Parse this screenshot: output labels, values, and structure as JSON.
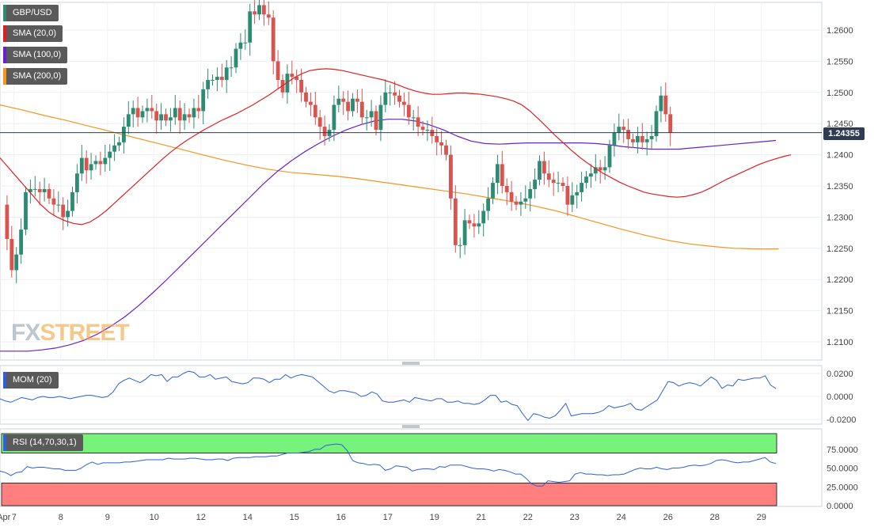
{
  "legend": {
    "pair": "GBP/USD",
    "sma20": "SMA (20,0)",
    "sma100": "SMA (100,0)",
    "sma200": "SMA (200,0)",
    "mom": "MOM (20)",
    "rsi": "RSI (14,70,30,1)"
  },
  "watermark": {
    "part1": "FX",
    "part2": "STREET"
  },
  "colors": {
    "up": "#2e8b73",
    "down": "#d9534f",
    "sma20": "#e02020",
    "sma100": "#6a1fd0",
    "sma200": "#f5951e",
    "mom": "#2f5fd8",
    "rsi": "#2f5fd8",
    "overbought": "#77f27a",
    "oversold": "#ff7f7f",
    "badge": "#2f3b52"
  },
  "chart_data": {
    "type": "candlestick",
    "current_price": "1.24355",
    "price_axis": {
      "ticks": [
        "1.2600",
        "1.2550",
        "1.2500",
        "1.2450",
        "1.2400",
        "1.2350",
        "1.2300",
        "1.2250",
        "1.2200",
        "1.2150",
        "1.2100"
      ]
    },
    "mom_axis": {
      "ticks": [
        "0.0200",
        "0.0000",
        "-0.0200"
      ]
    },
    "rsi_axis": {
      "ticks": [
        "75.0000",
        "50.0000",
        "25.0000",
        "0.0000"
      ],
      "overbought": 70,
      "oversold": 30
    },
    "x_labels": [
      {
        "label": "Apr",
        "idx": 0.3
      },
      {
        "label": "7",
        "idx": 2.5
      },
      {
        "label": "8",
        "idx": 12.5
      },
      {
        "label": "9",
        "idx": 22.5
      },
      {
        "label": "10",
        "idx": 32.5
      },
      {
        "label": "12",
        "idx": 42.5
      },
      {
        "label": "14",
        "idx": 52.5
      },
      {
        "label": "15",
        "idx": 62.5
      },
      {
        "label": "16",
        "idx": 72.5
      },
      {
        "label": "17",
        "idx": 82.5
      },
      {
        "label": "19",
        "idx": 92.5
      },
      {
        "label": "21",
        "idx": 102.5
      },
      {
        "label": "22",
        "idx": 112.5
      },
      {
        "label": "23",
        "idx": 122.5
      },
      {
        "label": "24",
        "idx": 132.5
      },
      {
        "label": "26",
        "idx": 142.5
      },
      {
        "label": "28",
        "idx": 152.5
      },
      {
        "label": "29",
        "idx": 162.5
      }
    ],
    "closes": [
      1.232,
      1.2265,
      1.2215,
      1.224,
      1.228,
      1.234,
      1.2345,
      1.2345,
      1.234,
      1.2345,
      1.233,
      1.232,
      1.232,
      1.23,
      1.231,
      1.234,
      1.237,
      1.2395,
      1.2375,
      1.2385,
      1.239,
      1.2385,
      1.2395,
      1.2405,
      1.2415,
      1.242,
      1.2445,
      1.2465,
      1.2475,
      1.246,
      1.247,
      1.2475,
      1.247,
      1.2455,
      1.2465,
      1.2455,
      1.246,
      1.2475,
      1.2455,
      1.2465,
      1.246,
      1.2475,
      1.247,
      1.2505,
      1.252,
      1.252,
      1.2525,
      1.252,
      1.254,
      1.254,
      1.257,
      1.258,
      1.258,
      1.263,
      1.2625,
      1.264,
      1.2625,
      1.262,
      1.255,
      1.252,
      1.25,
      1.253,
      1.2525,
      1.252,
      1.25,
      1.2485,
      1.248,
      1.246,
      1.2445,
      1.243,
      1.244,
      1.248,
      1.249,
      1.2485,
      1.247,
      1.249,
      1.2485,
      1.246,
      1.246,
      1.247,
      1.244,
      1.248,
      1.25,
      1.25,
      1.2495,
      1.2485,
      1.248,
      1.246,
      1.246,
      1.2445,
      1.244,
      1.244,
      1.243,
      1.242,
      1.2415,
      1.24,
      1.233,
      1.2255,
      1.2255,
      1.2295,
      1.229,
      1.2285,
      1.229,
      1.231,
      1.233,
      1.2355,
      1.2385,
      1.235,
      1.234,
      1.2325,
      1.232,
      1.2325,
      1.233,
      1.2345,
      1.236,
      1.239,
      1.237,
      1.236,
      1.2355,
      1.2355,
      1.235,
      1.232,
      1.2335,
      1.234,
      1.2355,
      1.2365,
      1.237,
      1.238,
      1.2375,
      1.238,
      1.2415,
      1.2435,
      1.2445,
      1.244,
      1.2425,
      1.242,
      1.243,
      1.242,
      1.2425,
      1.243,
      1.247,
      1.2495,
      1.2465,
      1.2435
    ],
    "sma20": [
      1.2395,
      1.238,
      1.2365,
      1.235,
      1.2335,
      1.232,
      1.2308,
      1.23,
      1.2294,
      1.229,
      1.2288,
      1.2292,
      1.23,
      1.231,
      1.2322,
      1.2334,
      1.2346,
      1.2358,
      1.237,
      1.2382,
      1.2394,
      1.2405,
      1.2415,
      1.2424,
      1.2432,
      1.244,
      1.2447,
      1.2454,
      1.246,
      1.2466,
      1.2473,
      1.248,
      1.2488,
      1.2496,
      1.2505,
      1.2514,
      1.2523,
      1.253,
      1.2535,
      1.2537,
      1.2538,
      1.2537,
      1.2535,
      1.2532,
      1.2529,
      1.2526,
      1.2523,
      1.252,
      1.2516,
      1.2511,
      1.2506,
      1.2502,
      1.2499,
      1.2497,
      1.2497,
      1.2498,
      1.2499,
      1.2499,
      1.2498,
      1.2497,
      1.2495,
      1.2493,
      1.249,
      1.2486,
      1.248,
      1.247,
      1.2458,
      1.2445,
      1.2432,
      1.242,
      1.2408,
      1.2397,
      1.2387,
      1.2378,
      1.237,
      1.2363,
      1.2356,
      1.235,
      1.2345,
      1.234,
      1.2337,
      1.2335,
      1.2333,
      1.2332,
      1.2333,
      1.2336,
      1.234,
      1.2346,
      1.2353,
      1.236,
      1.2366,
      1.2372,
      1.2378,
      1.2384,
      1.2389,
      1.2393,
      1.2397,
      1.24
    ],
    "sma100": [
      1.2085,
      1.2085,
      1.2085,
      1.2087,
      1.209,
      1.2095,
      1.2102,
      1.2112,
      1.2125,
      1.214,
      1.2158,
      1.2178,
      1.2199,
      1.2221,
      1.2243,
      1.2265,
      1.2287,
      1.2309,
      1.2331,
      1.2353,
      1.2373,
      1.239,
      1.2405,
      1.2418,
      1.243,
      1.244,
      1.2448,
      1.2454,
      1.2457,
      1.2457,
      1.2454,
      1.2448,
      1.244,
      1.243,
      1.2422,
      1.2418,
      1.2417,
      1.2418,
      1.2419,
      1.2419,
      1.2419,
      1.2419,
      1.2419,
      1.2418,
      1.2416,
      1.2413,
      1.2411,
      1.2409,
      1.2409,
      1.2409,
      1.2411,
      1.2413,
      1.2415,
      1.2417,
      1.2419,
      1.2421,
      1.2423
    ],
    "sma200": [
      1.248,
      1.2472,
      1.2463,
      1.2455,
      1.2446,
      1.2437,
      1.2428,
      1.2419,
      1.241,
      1.2401,
      1.2392,
      1.2384,
      1.2377,
      1.2372,
      1.2369,
      1.2366,
      1.2362,
      1.2357,
      1.2352,
      1.2347,
      1.2342,
      1.2337,
      1.2331,
      1.2325,
      1.2318,
      1.231,
      1.23,
      1.229,
      1.228,
      1.2271,
      1.2263,
      1.2257,
      1.2253,
      1.225,
      1.2249,
      1.2249
    ],
    "mom": [
      -0.002,
      -0.004,
      -0.005,
      -0.003,
      -0.001,
      -0.002,
      -0.003,
      -0.001,
      0.0,
      -0.001,
      -0.001,
      0.0,
      -0.001,
      -0.002,
      -0.001,
      0.0,
      0.001,
      0.001,
      0.0,
      -0.001,
      0.0,
      0.004,
      0.011,
      0.014,
      0.016,
      0.014,
      0.012,
      0.015,
      0.019,
      0.018,
      0.019,
      0.013,
      0.017,
      0.017,
      0.02,
      0.022,
      0.021,
      0.017,
      0.017,
      0.019,
      0.015,
      0.016,
      0.017,
      0.013,
      0.012,
      0.011,
      0.012,
      0.016,
      0.016,
      0.015,
      0.012,
      0.015,
      0.015,
      0.019,
      0.016,
      0.018,
      0.019,
      0.018,
      0.017,
      0.013,
      0.009,
      0.005,
      0.003,
      0.005,
      0.005,
      0.004,
      0.003,
      0.0,
      0.001,
      0.004,
      0.002,
      -0.004,
      -0.005,
      -0.005,
      -0.004,
      -0.003,
      -0.005,
      -0.001,
      -0.002,
      -0.003,
      -0.004,
      -0.002,
      -0.002,
      -0.005,
      -0.005,
      -0.004,
      -0.006,
      -0.006,
      -0.007,
      -0.006,
      -0.003,
      0.001,
      0.001,
      -0.005,
      -0.004,
      -0.007,
      -0.008,
      -0.015,
      -0.021,
      -0.015,
      -0.016,
      -0.018,
      -0.019,
      -0.017,
      -0.012,
      -0.006,
      -0.017,
      -0.016,
      -0.015,
      -0.015,
      -0.015,
      -0.014,
      -0.012,
      -0.008,
      -0.01,
      -0.009,
      -0.008,
      -0.006,
      -0.011,
      -0.012,
      -0.009,
      -0.006,
      -0.003,
      0.005,
      0.013,
      0.012,
      0.009,
      0.011,
      0.012,
      0.011,
      0.009,
      0.013,
      0.017,
      0.014,
      0.007,
      0.01,
      0.009,
      0.015,
      0.014,
      0.015,
      0.016,
      0.016,
      0.018,
      0.01,
      0.007
    ],
    "rsi": [
      46,
      44,
      40,
      44,
      45,
      52,
      50,
      51,
      51,
      50,
      49,
      49,
      47,
      47,
      47,
      50,
      55,
      58,
      55,
      57,
      57,
      57,
      57,
      58,
      58,
      59,
      60,
      61,
      61,
      61,
      61,
      63,
      62,
      62,
      62,
      63,
      63,
      62,
      61,
      61,
      62,
      62,
      60,
      63,
      64,
      64,
      64,
      65,
      65,
      65,
      66,
      66,
      68,
      70,
      70,
      70,
      71,
      72,
      75,
      75,
      80,
      81,
      82,
      81,
      73,
      60,
      57,
      56,
      54,
      55,
      54,
      47,
      49,
      53,
      52,
      51,
      46,
      48,
      49,
      49,
      48,
      52,
      51,
      54,
      54,
      54,
      52,
      50,
      49,
      49,
      48,
      46,
      48,
      47,
      45,
      42,
      42,
      36,
      29,
      26,
      26,
      33,
      32,
      31,
      32,
      33,
      42,
      44,
      42,
      42,
      41,
      41,
      40,
      41,
      41,
      42,
      45,
      48,
      50,
      49,
      49,
      51,
      49,
      48,
      50,
      50,
      51,
      53,
      54,
      53,
      54,
      56,
      60,
      61,
      60,
      58,
      57,
      58,
      58,
      60,
      62,
      64,
      58,
      56
    ]
  }
}
